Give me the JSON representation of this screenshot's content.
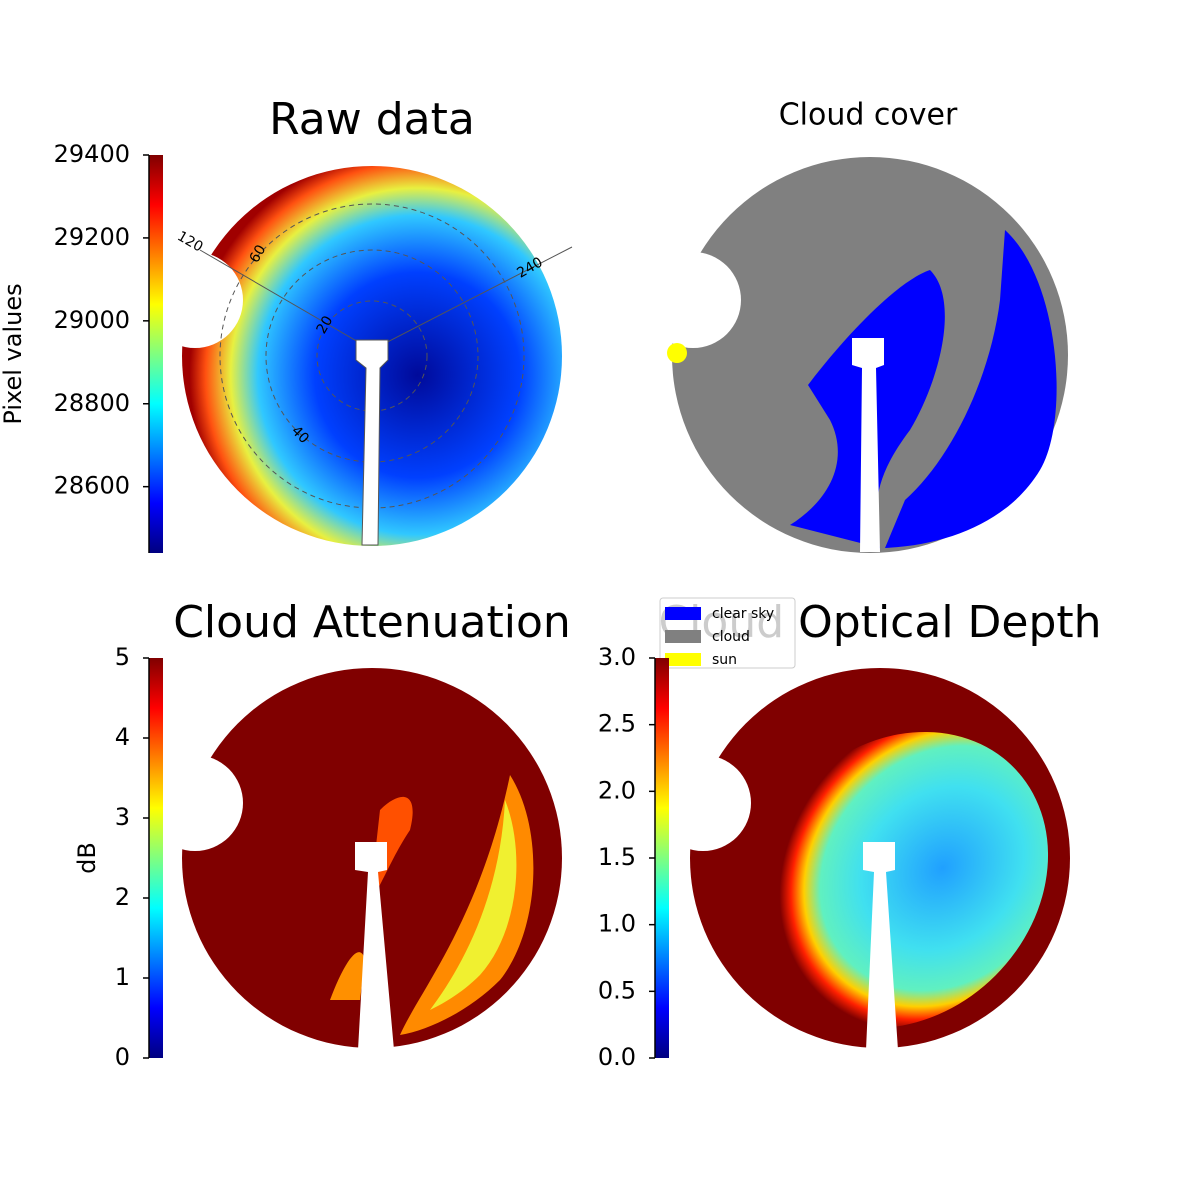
{
  "chart_data": [
    {
      "type": "image",
      "title": "Raw data",
      "colormap": "jet",
      "ylabel": "Pixel values",
      "ylim": [
        28440,
        29400
      ],
      "yticks": [
        28600,
        28800,
        29000,
        29200,
        29400
      ],
      "annotations": [
        "120",
        "60",
        "20",
        "40",
        "240"
      ]
    },
    {
      "type": "image",
      "title": "Cloud cover",
      "legend": [
        {
          "name": "clear sky",
          "color": "#0000ff"
        },
        {
          "name": "cloud",
          "color": "#808080"
        },
        {
          "name": "sun",
          "color": "#ffff00"
        }
      ]
    },
    {
      "type": "image",
      "title": "Cloud Attenuation",
      "colormap": "jet",
      "ylabel": "dB",
      "ylim": [
        0,
        5
      ],
      "yticks": [
        0,
        1,
        2,
        3,
        4,
        5
      ]
    },
    {
      "type": "image",
      "title": "Cloud Optical Depth",
      "colormap": "jet",
      "ylim": [
        0,
        3
      ],
      "yticks": [
        {
          "value": 0,
          "label": "0.0"
        },
        {
          "value": 0.5,
          "label": "0.5"
        },
        {
          "value": 1,
          "label": "1.0"
        },
        {
          "value": 1.5,
          "label": "1.5"
        },
        {
          "value": 2,
          "label": "2.0"
        },
        {
          "value": 2.5,
          "label": "2.5"
        },
        {
          "value": 3,
          "label": "3.0"
        }
      ]
    }
  ]
}
